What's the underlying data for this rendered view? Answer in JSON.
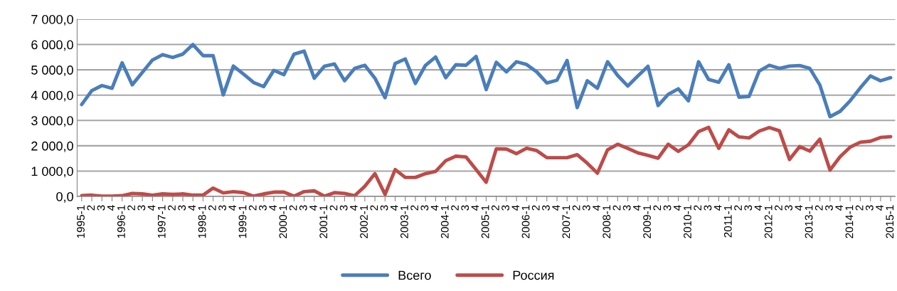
{
  "chart_data": {
    "type": "line",
    "categories": [
      "1995-1",
      "2",
      "3",
      "4",
      "1996-1",
      "2",
      "3",
      "4",
      "1997-1",
      "2",
      "3",
      "4",
      "1998-1",
      "2",
      "3",
      "4",
      "1999-1",
      "2",
      "3",
      "4",
      "2000-1",
      "2",
      "3",
      "4",
      "2001-1",
      "2",
      "3",
      "4",
      "2002-1",
      "2",
      "3",
      "4",
      "2003-1",
      "2",
      "3",
      "4",
      "2004-1",
      "2",
      "3",
      "4",
      "2005-1",
      "2",
      "3",
      "4",
      "2006-1",
      "2",
      "3",
      "4",
      "2007-1",
      "2",
      "3",
      "4",
      "2008-1",
      "2",
      "3",
      "4",
      "2009-1",
      "2",
      "3",
      "4",
      "2010-1",
      "2",
      "3",
      "4",
      "2011-1",
      "2",
      "3",
      "4",
      "2012-1",
      "2",
      "3",
      "4",
      "2013-1",
      "2",
      "3",
      "4",
      "2014-1",
      "2",
      "3",
      "4",
      "2015-1"
    ],
    "series": [
      {
        "name": "Всего",
        "color": "#4a7ebb",
        "values": [
          3630,
          4180,
          4380,
          4270,
          5280,
          4410,
          4900,
          5390,
          5600,
          5490,
          5620,
          6000,
          5560,
          5560,
          4010,
          5150,
          4830,
          4500,
          4340,
          4980,
          4810,
          5620,
          5740,
          4670,
          5140,
          5230,
          4570,
          5060,
          5180,
          4670,
          3900,
          5250,
          5430,
          4460,
          5180,
          5510,
          4690,
          5200,
          5180,
          5530,
          4220,
          5300,
          4920,
          5320,
          5210,
          4920,
          4480,
          4590,
          5370,
          3510,
          4570,
          4270,
          5320,
          4780,
          4360,
          4760,
          5140,
          3590,
          4030,
          4250,
          3780,
          5320,
          4620,
          4510,
          5200,
          3920,
          3950,
          4950,
          5180,
          5060,
          5150,
          5170,
          5060,
          4400,
          3150,
          3360,
          3780,
          4290,
          4760,
          4570,
          4690
        ]
      },
      {
        "name": "Россия",
        "color": "#be4b48",
        "values": [
          30,
          50,
          10,
          10,
          30,
          120,
          100,
          50,
          100,
          80,
          100,
          50,
          50,
          330,
          140,
          190,
          150,
          10,
          100,
          170,
          170,
          10,
          190,
          220,
          10,
          150,
          120,
          30,
          400,
          900,
          80,
          1060,
          750,
          750,
          900,
          990,
          1410,
          1590,
          1560,
          1060,
          560,
          1880,
          1870,
          1690,
          1900,
          1810,
          1530,
          1530,
          1530,
          1650,
          1310,
          920,
          1840,
          2060,
          1900,
          1720,
          1620,
          1510,
          2060,
          1780,
          2040,
          2560,
          2730,
          1900,
          2630,
          2350,
          2310,
          2580,
          2720,
          2590,
          1460,
          1970,
          1790,
          2260,
          1040,
          1570,
          1950,
          2140,
          2180,
          2330,
          2360
        ]
      }
    ],
    "ylim": [
      0,
      7000
    ],
    "yticks": [
      {
        "value": 0,
        "label": "0,0"
      },
      {
        "value": 1000,
        "label": "1 000,0"
      },
      {
        "value": 2000,
        "label": "2 000,0"
      },
      {
        "value": 3000,
        "label": "3 000,0"
      },
      {
        "value": 4000,
        "label": "4 000,0"
      },
      {
        "value": 5000,
        "label": "5 000,0"
      },
      {
        "value": 6000,
        "label": "6 000,0"
      },
      {
        "value": 7000,
        "label": "7 000,0"
      }
    ],
    "grid": "y",
    "legend": "bottom",
    "marker": "none",
    "line_style": "solid"
  }
}
